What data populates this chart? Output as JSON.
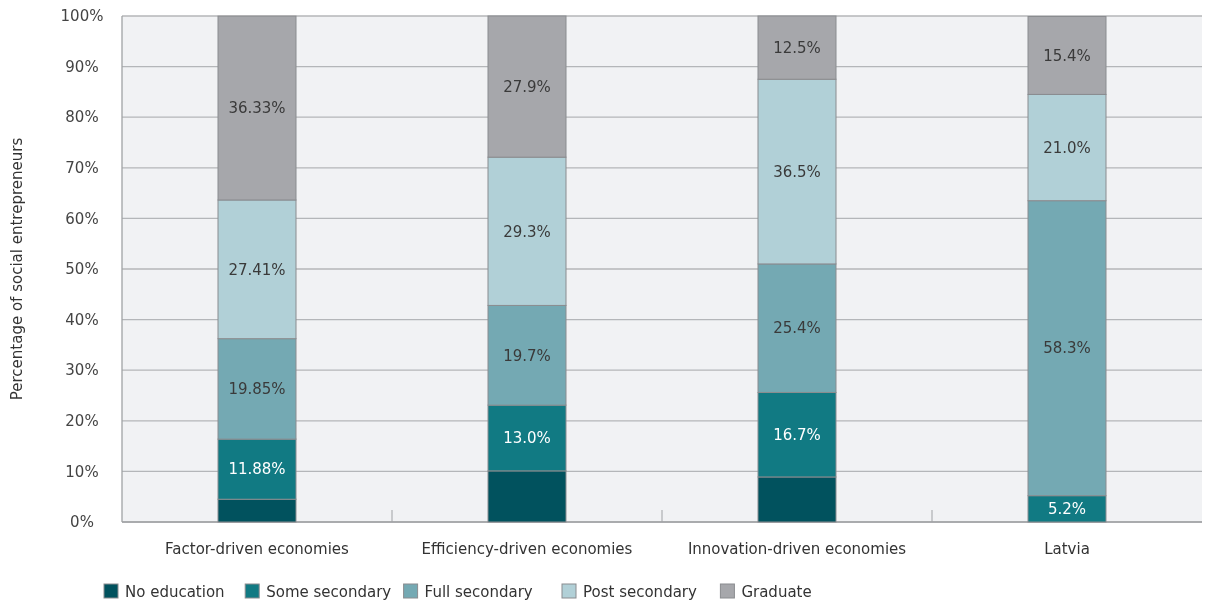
{
  "chart_data": {
    "type": "bar",
    "stacked": true,
    "ylabel": "Percentage of social entrepreneurs",
    "categories": [
      "Factor-driven economies",
      "Efficiency-driven economies",
      "Innovation-driven economies",
      "Latvia"
    ],
    "ylim": [
      0,
      100
    ],
    "yticks": [
      {
        "value": 0,
        "label": "0%"
      },
      {
        "value": 10,
        "label": "10%"
      },
      {
        "value": 20,
        "label": "20%"
      },
      {
        "value": 30,
        "label": "30%"
      },
      {
        "value": 40,
        "label": "40%"
      },
      {
        "value": 50,
        "label": "50%"
      },
      {
        "value": 60,
        "label": "60%"
      },
      {
        "value": 70,
        "label": "70%"
      },
      {
        "value": 80,
        "label": "80%"
      },
      {
        "value": 90,
        "label": "90%"
      },
      {
        "value": 100,
        "label": "100%"
      }
    ],
    "grid": "y",
    "legend": "bottom",
    "series": [
      {
        "name": "No education",
        "color": "#01525e",
        "values": [
          4.5,
          10.1,
          8.9,
          0
        ],
        "value_labels": [
          null,
          null,
          null,
          null
        ]
      },
      {
        "name": "Some secondary",
        "color": "#117a83",
        "values": [
          11.88,
          13.0,
          16.7,
          5.2
        ],
        "value_labels": [
          "11.88%",
          "13.0%",
          "16.7%",
          "5.2%"
        ]
      },
      {
        "name": "Full secondary",
        "color": "#74a9b3",
        "values": [
          19.85,
          19.7,
          25.4,
          58.3
        ],
        "value_labels": [
          "19.85%",
          "19.7%",
          "25.4%",
          "58.3%"
        ]
      },
      {
        "name": "Post secondary",
        "color": "#b1d0d7",
        "values": [
          27.41,
          29.3,
          36.5,
          21.0
        ],
        "value_labels": [
          "27.41%",
          "29.3%",
          "36.5%",
          "21.0%"
        ]
      },
      {
        "name": "Graduate",
        "color": "#a6a7ab",
        "values": [
          36.33,
          27.9,
          12.5,
          15.4
        ],
        "value_labels": [
          "36.33%",
          "27.9%",
          "12.5%",
          "15.4%"
        ]
      }
    ]
  }
}
